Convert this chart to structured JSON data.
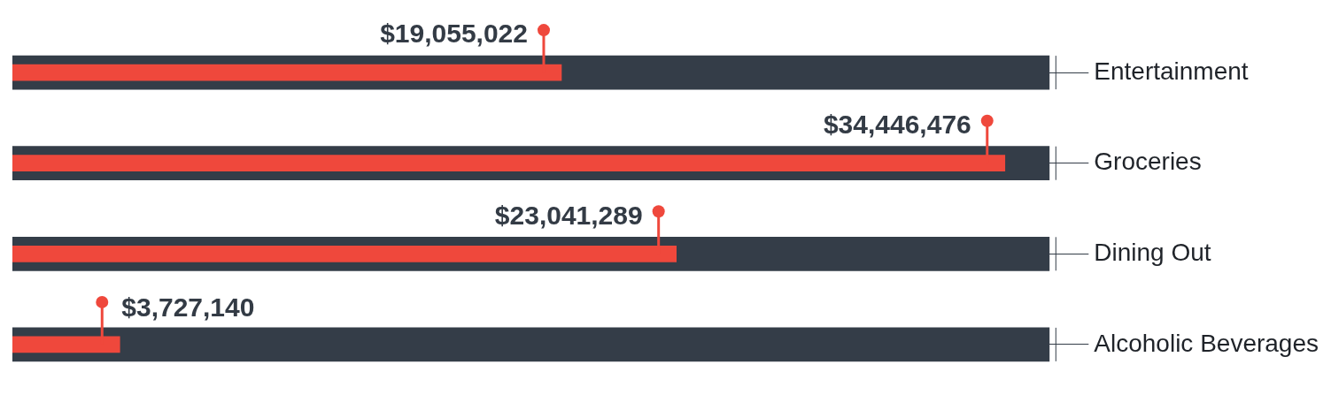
{
  "chart_data": {
    "type": "bar",
    "orientation": "horizontal",
    "categories": [
      "Entertainment",
      "Groceries",
      "Dining Out",
      "Alcoholic Beverages"
    ],
    "series": [
      {
        "color": "#343d48",
        "values": [
          36000000,
          36000000,
          36000000,
          36000000
        ]
      },
      {
        "color": "#ef483c",
        "values": [
          19055022,
          34446476,
          23041289,
          3727140
        ],
        "value_labels": [
          "$19,055,022",
          "$34,446,476",
          "$23,041,289",
          "$3,727,140"
        ]
      }
    ]
  }
}
